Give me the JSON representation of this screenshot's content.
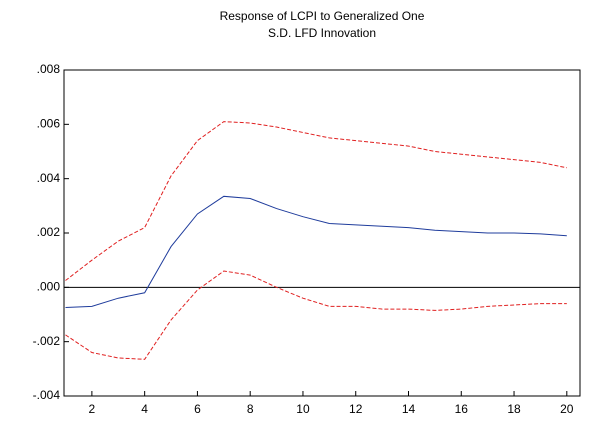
{
  "chart_data": {
    "type": "line",
    "title": [
      "Response of LCPI to Generalized One",
      "S.D. LFD Innovation"
    ],
    "x": [
      1,
      2,
      3,
      4,
      5,
      6,
      7,
      8,
      9,
      10,
      11,
      12,
      13,
      14,
      15,
      16,
      17,
      18,
      19,
      20
    ],
    "series": [
      {
        "color": "#1f3c9c",
        "style": "solid",
        "values": [
          -0.00074,
          -0.0007,
          -0.0004,
          -0.0002,
          0.0015,
          0.0027,
          0.00335,
          0.00327,
          0.0029,
          0.0026,
          0.00235,
          0.0023,
          0.00225,
          0.0022,
          0.0021,
          0.00205,
          0.002,
          0.002,
          0.00197,
          0.0019
        ]
      },
      {
        "color": "#e02020",
        "style": "dashed",
        "values": [
          0.00025,
          0.001,
          0.0017,
          0.0022,
          0.0041,
          0.0054,
          0.0061,
          0.00605,
          0.0059,
          0.0057,
          0.0055,
          0.0054,
          0.0053,
          0.0052,
          0.005,
          0.0049,
          0.0048,
          0.0047,
          0.0046,
          0.0044
        ]
      },
      {
        "color": "#e02020",
        "style": "dashed",
        "values": [
          -0.00175,
          -0.0024,
          -0.0026,
          -0.00265,
          -0.0012,
          -0.0001,
          0.0006,
          0.00045,
          0,
          -0.0004,
          -0.0007,
          -0.0007,
          -0.0008,
          -0.0008,
          -0.00085,
          -0.0008,
          -0.0007,
          -0.00065,
          -0.0006,
          -0.0006
        ]
      }
    ],
    "xlim": [
      1,
      20.5
    ],
    "xticks": [
      2,
      4,
      6,
      8,
      10,
      12,
      14,
      16,
      18,
      20
    ],
    "ylim": [
      -0.004,
      0.008
    ],
    "yticks": [
      {
        "value": -0.004,
        "label": "-.004"
      },
      {
        "value": -0.002,
        "label": "-.002"
      },
      {
        "value": 0,
        "label": ".000"
      },
      {
        "value": 0.002,
        "label": ".002"
      },
      {
        "value": 0.004,
        "label": ".004"
      },
      {
        "value": 0.006,
        "label": ".006"
      },
      {
        "value": 0.008,
        "label": ".008"
      }
    ],
    "zero_line": true
  }
}
